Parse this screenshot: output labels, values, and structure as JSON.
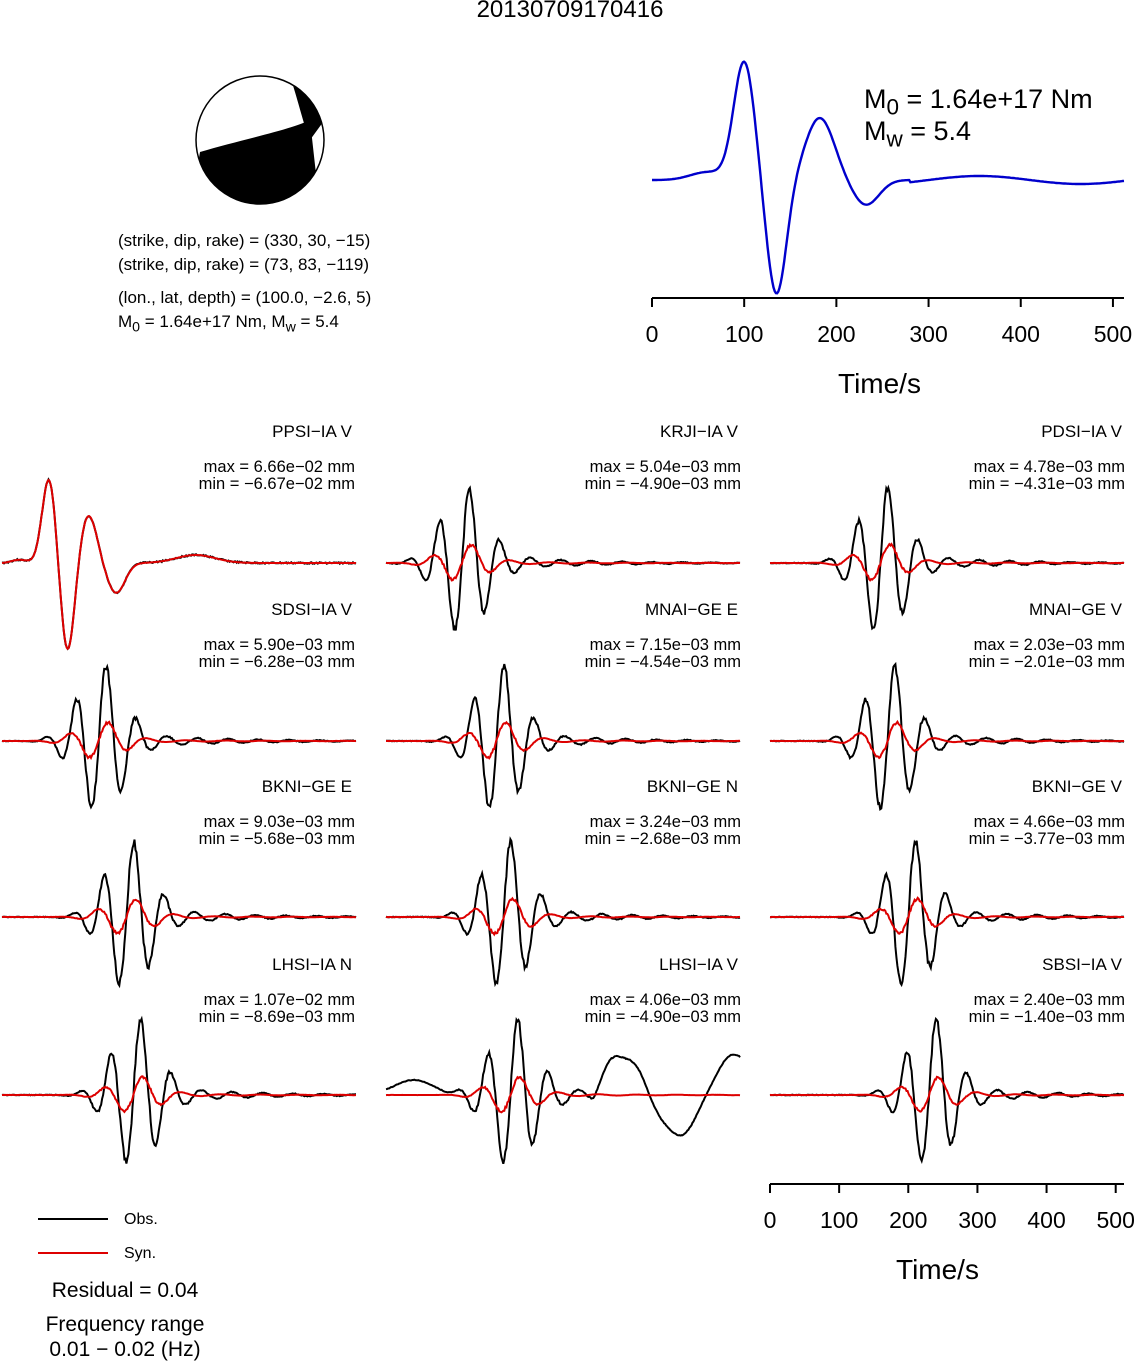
{
  "title": "20130709170416",
  "focal_mechanism": {
    "colors": {
      "compressional": "#000000",
      "dilatational": "#ffffff"
    },
    "params": [
      "(strike, dip, rake) = (330, 30, −15)",
      "(strike, dip, rake) = (73, 83, −119)",
      "(lon., lat, depth) = (100.0, −2.6, 5)"
    ],
    "moment_line": {
      "m0_sym": "M",
      "m0_sub": "0",
      "m0_text": " = 1.64e+17 Nm, ",
      "mw_sym": "M",
      "mw_sub": "w",
      "mw_text": " = 5.4"
    }
  },
  "stf": {
    "m0": {
      "sym": "M",
      "sub": "0",
      "text": " = 1.64e+17 Nm"
    },
    "mw": {
      "sym": "M",
      "sub": "w",
      "text": " = 5.4"
    },
    "color": "#0000cc",
    "xlim": [
      0,
      512
    ],
    "ticks": [
      "0",
      "100",
      "200",
      "300",
      "400",
      "500"
    ],
    "xlabel": "Time/s"
  },
  "chart_data": {
    "type": "line",
    "xlim": [
      0,
      512
    ],
    "xlabel": "Time/s",
    "legend": [
      {
        "label": "Obs.",
        "color": "#000000"
      },
      {
        "label": "Syn.",
        "color": "#dd0000"
      }
    ],
    "panels": [
      {
        "label": "PPSI−IA V",
        "max": "max = 6.66e−02 mm",
        "min": "min = −6.67e−02 mm"
      },
      {
        "label": "KRJI−IA V",
        "max": "max = 5.04e−03 mm",
        "min": "min = −4.90e−03 mm"
      },
      {
        "label": "PDSI−IA V",
        "max": "max = 4.78e−03 mm",
        "min": "min = −4.31e−03 mm"
      },
      {
        "label": "SDSI−IA V",
        "max": "max = 5.90e−03 mm",
        "min": "min = −6.28e−03 mm"
      },
      {
        "label": "MNAI−GE E",
        "max": "max = 7.15e−03 mm",
        "min": "min = −4.54e−03 mm"
      },
      {
        "label": "MNAI−GE V",
        "max": "max = 2.03e−03 mm",
        "min": "min = −2.01e−03 mm"
      },
      {
        "label": "BKNI−GE E",
        "max": "max = 9.03e−03 mm",
        "min": "min = −5.68e−03 mm"
      },
      {
        "label": "BKNI−GE N",
        "max": "max = 3.24e−03 mm",
        "min": "min = −2.68e−03 mm"
      },
      {
        "label": "BKNI−GE V",
        "max": "max = 4.66e−03 mm",
        "min": "min = −3.77e−03 mm"
      },
      {
        "label": "LHSI−IA N",
        "max": "max = 1.07e−02 mm",
        "min": "min = −8.69e−03 mm"
      },
      {
        "label": "LHSI−IA V",
        "max": "max = 4.06e−03 mm",
        "min": "min = −4.90e−03 mm"
      },
      {
        "label": "SBSI−IA V",
        "max": "max = 2.40e−03 mm",
        "min": "min = −1.40e−03 mm"
      }
    ],
    "ticks": [
      "0",
      "100",
      "200",
      "300",
      "400",
      "500"
    ]
  },
  "residual": "Residual = 0.04",
  "freq_label": "Frequency range",
  "freq_value": "0.01 − 0.02 (Hz)"
}
